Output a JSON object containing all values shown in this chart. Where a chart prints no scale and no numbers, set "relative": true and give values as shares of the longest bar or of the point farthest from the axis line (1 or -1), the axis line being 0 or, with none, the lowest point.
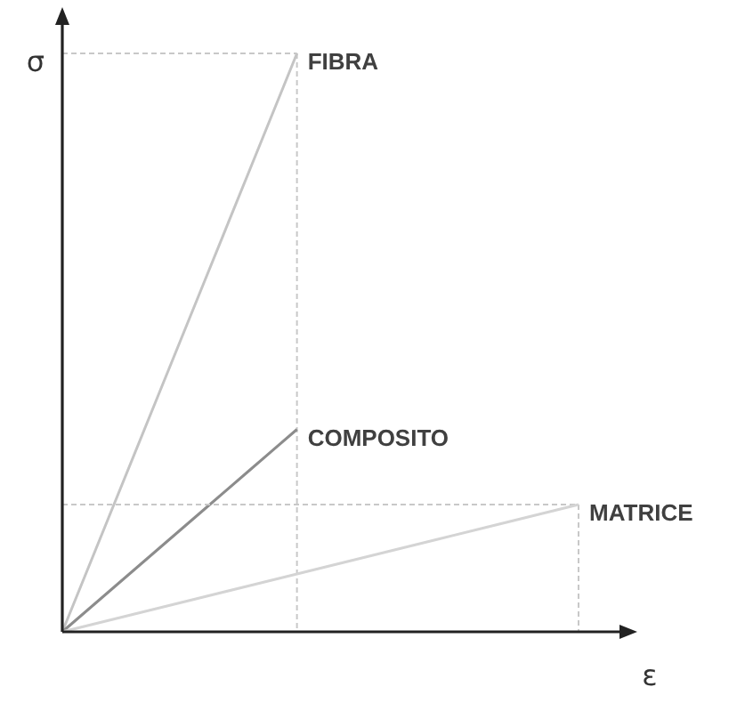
{
  "chart_data": {
    "type": "line",
    "relative": true,
    "xlabel": "ε",
    "ylabel": "σ",
    "marker": "none",
    "line_style": "solid",
    "categories": [
      null,
      null,
      null,
      null,
      null,
      null,
      null,
      null,
      null,
      null,
      null,
      null
    ],
    "series": [
      {
        "name": "FIBRA",
        "color": "#c4c4c4",
        "values": [
          0,
          0.2,
          0.4,
          0.6,
          0.8,
          1,
          null,
          null,
          null,
          null,
          null,
          null
        ]
      },
      {
        "name": "COMPOSITO",
        "color": "#8c8c8c",
        "values": [
          0,
          0.07,
          0.14,
          0.21,
          0.28,
          0.35,
          null,
          null,
          null,
          null,
          null,
          null
        ]
      },
      {
        "name": "MATRICE",
        "color": "#d4d4d4",
        "values": [
          0,
          0.02,
          0.04,
          0.06,
          0.08,
          0.1,
          0.12,
          0.14,
          0.16,
          0.18,
          0.2,
          0.22
        ]
      }
    ]
  }
}
